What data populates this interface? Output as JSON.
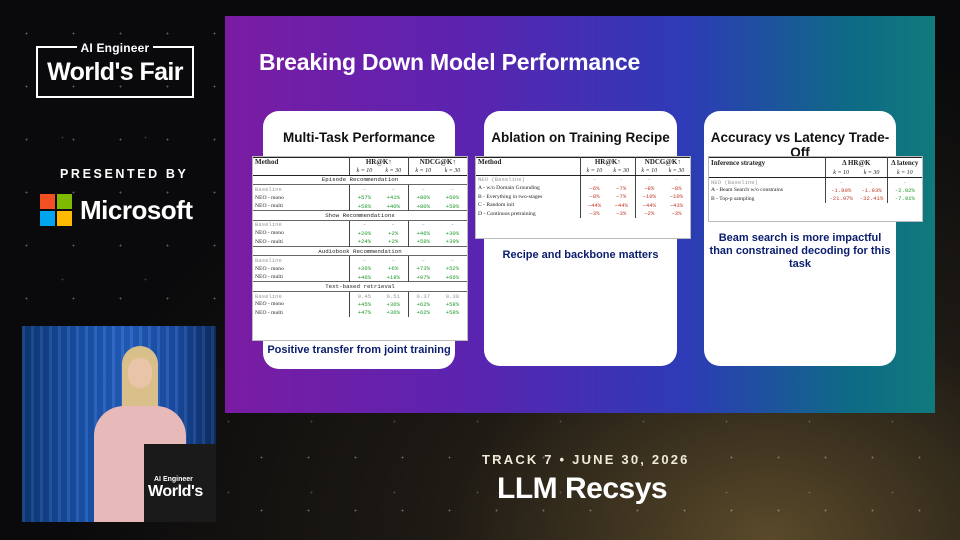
{
  "branding": {
    "event_small": "AI Engineer",
    "event_big": "World's Fair",
    "presented_by": "PRESENTED BY",
    "sponsor": "Microsoft",
    "sponsor_logo_colors": [
      "#f25022",
      "#7fba00",
      "#00a4ef",
      "#ffb900"
    ]
  },
  "video": {
    "podium_small": "AI Engineer",
    "podium_big": "World's"
  },
  "slide": {
    "title": "Breaking Down Model Performance",
    "card1": {
      "title": "Multi-Task Performance",
      "caption": "Positive transfer from joint training",
      "headers": [
        "Method",
        "HR@K↑",
        "NDCG@K↑"
      ],
      "subheaders": [
        "k = 10",
        "k = 30",
        "k = 10",
        "k = 30"
      ],
      "sections": [
        {
          "name": "Episode Recommendation",
          "rows": [
            {
              "method": "Baseline",
              "vals": [
                "–",
                "–",
                "–",
                "–"
              ],
              "kind": "gray"
            },
            {
              "method": "NEO - mono",
              "vals": [
                "+57%",
                "+41%",
                "+80%",
                "+60%"
              ],
              "kind": "green"
            },
            {
              "method": "NEO - multi",
              "vals": [
                "+58%",
                "+40%",
                "+80%",
                "+59%"
              ],
              "kind": "green"
            }
          ]
        },
        {
          "name": "Show Recommendations",
          "rows": [
            {
              "method": "Baseline",
              "vals": [
                "–",
                "–",
                "–",
                "–"
              ],
              "kind": "gray"
            },
            {
              "method": "NEO - mono",
              "vals": [
                "+20%",
                "+2%",
                "+46%",
                "+30%"
              ],
              "kind": "green"
            },
            {
              "method": "NEO - multi",
              "vals": [
                "+24%",
                "+2%",
                "+58%",
                "+39%"
              ],
              "kind": "green"
            }
          ]
        },
        {
          "name": "Audiobook Recommendation",
          "rows": [
            {
              "method": "Baseline",
              "vals": [
                "–",
                "–",
                "–",
                "–"
              ],
              "kind": "gray"
            },
            {
              "method": "NEO - mono",
              "vals": [
                "+36%",
                "+6%",
                "+73%",
                "+52%"
              ],
              "kind": "green"
            },
            {
              "method": "NEO - multi",
              "vals": [
                "+46%",
                "+18%",
                "+97%",
                "+66%"
              ],
              "kind": "green"
            }
          ]
        },
        {
          "name": "Text-based retrieval",
          "rows": [
            {
              "method": "Baseline",
              "vals": [
                "0.45",
                "0.51",
                "0.37",
                "0.38"
              ],
              "kind": "gray"
            },
            {
              "method": "NEO - mono",
              "vals": [
                "+45%",
                "+36%",
                "+62%",
                "+58%"
              ],
              "kind": "green"
            },
            {
              "method": "NEO - multi",
              "vals": [
                "+47%",
                "+36%",
                "+62%",
                "+58%"
              ],
              "kind": "green"
            }
          ]
        }
      ]
    },
    "card2": {
      "title": "Ablation on Training Recipe",
      "caption": "Recipe  and backbone matters",
      "headers": [
        "Method",
        "HR@K↑",
        "NDCG@K↑"
      ],
      "subheaders": [
        "k = 10",
        "k = 30",
        "k = 10",
        "k = 30"
      ],
      "rows": [
        {
          "method": "NEO (Baseline)",
          "vals": [
            "-",
            "-",
            "-",
            "-"
          ],
          "kind": "gray"
        },
        {
          "method": "A - w/o Domain Grounding",
          "vals": [
            "−6%",
            "−7%",
            "−8%",
            "−8%"
          ],
          "kind": "red"
        },
        {
          "method": "B - Everything in two-stages",
          "vals": [
            "−8%",
            "−7%",
            "−10%",
            "−10%"
          ],
          "kind": "red"
        },
        {
          "method": "C - Random init",
          "vals": [
            "−44%",
            "−44%",
            "−44%",
            "−43%"
          ],
          "kind": "red"
        },
        {
          "method": "D - Continuos pretraining",
          "vals": [
            "−3%",
            "−3%",
            "−2%",
            "−3%"
          ],
          "kind": "red"
        }
      ]
    },
    "card3": {
      "title": "Accuracy vs Latency Trade-Off",
      "caption": "Beam search is more impactful than constrained decoding for this task",
      "headers": [
        "Inference strategy",
        "Δ HR@K",
        "Δ latency"
      ],
      "subheaders": [
        "k = 10",
        "k = 30",
        "k = 10"
      ],
      "rows": [
        {
          "method": "NEO (Baseline)",
          "vals": [
            "-",
            "-",
            "-"
          ],
          "kinds": [
            "gray",
            "gray",
            "gray"
          ],
          "kind": "gray"
        },
        {
          "method": "A - Beam Search w/o constrains",
          "vals": [
            "-1.80%",
            "-1.93%",
            "-2.92%"
          ],
          "kinds": [
            "red",
            "red",
            "green"
          ],
          "kind": "normal"
        },
        {
          "method": "B - Top-p sampling",
          "vals": [
            "-21.97%",
            "-32.41%",
            "-7.91%"
          ],
          "kinds": [
            "red",
            "red",
            "green"
          ],
          "kind": "normal"
        }
      ]
    }
  },
  "track": {
    "label": "TRACK 7 • JUNE 30, 2026",
    "talk_title": "LLM Recsys"
  }
}
